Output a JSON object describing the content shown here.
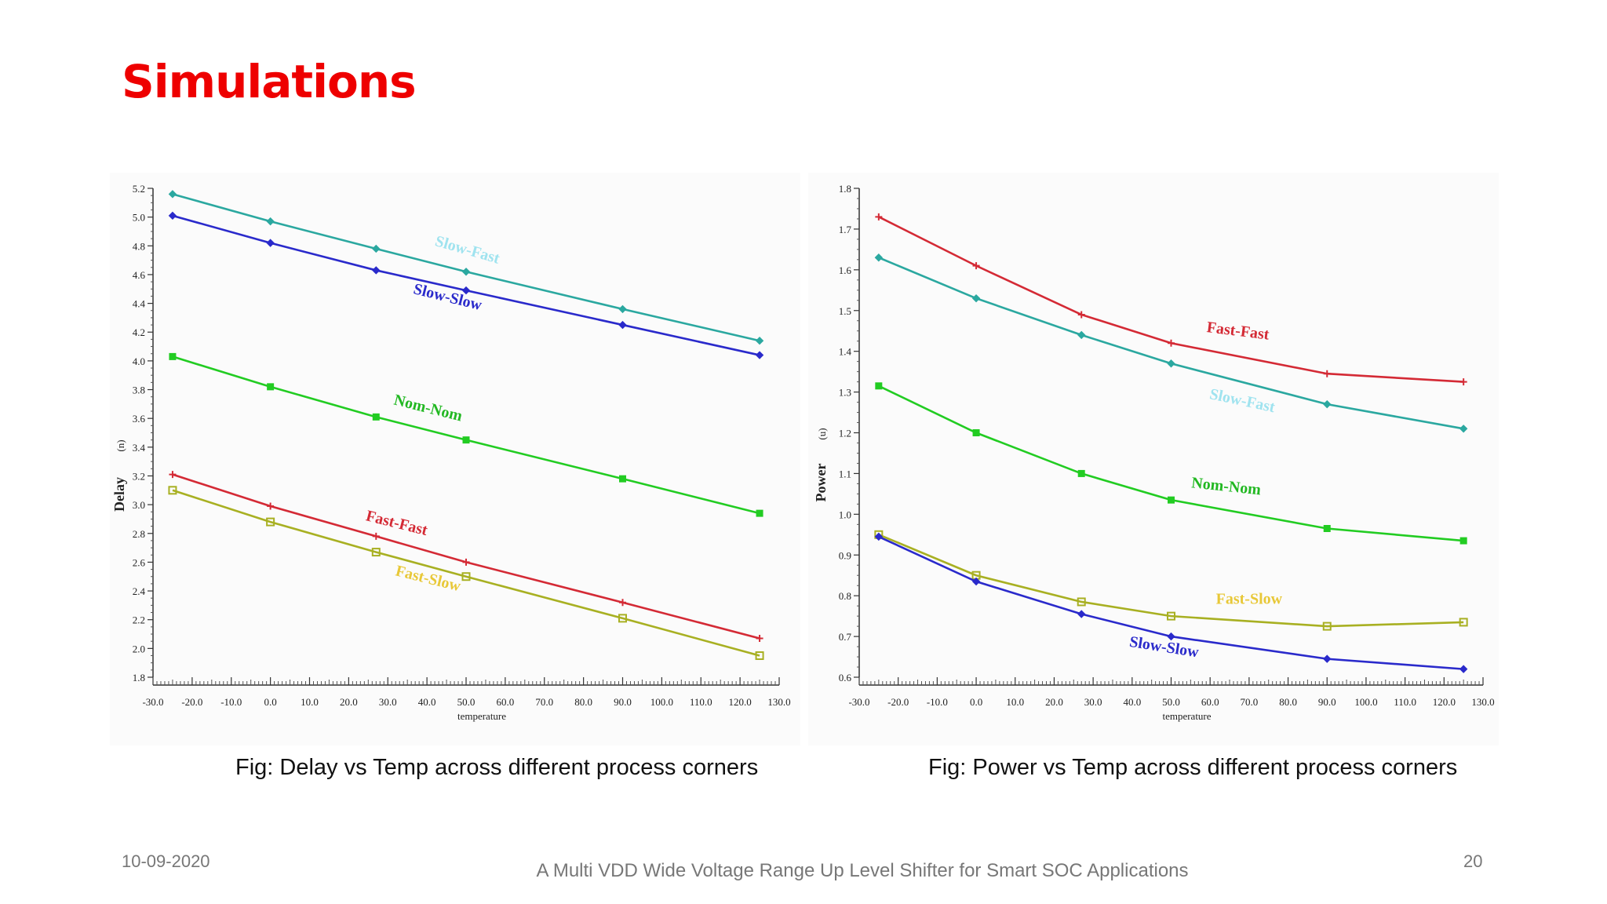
{
  "slide": {
    "title": "Simulations",
    "footer_date": "10-09-2020",
    "footer_title": "A Multi VDD Wide Voltage Range Up Level Shifter for Smart SOC Applications",
    "page_number": "20"
  },
  "captions": {
    "delay": "Fig: Delay vs Temp across different process corners",
    "power": "Fig: Power vs Temp across different process corners"
  },
  "chart_data": [
    {
      "id": "delay",
      "type": "line",
      "xlabel": "temperature",
      "ylabel": "Delay",
      "ylabel_unit": "(n)",
      "xlim": [
        -30,
        130
      ],
      "ylim": [
        1.8,
        5.2
      ],
      "xticks": [
        "-30.0",
        "-20.0",
        "-10.0",
        "0.0",
        "10.0",
        "20.0",
        "30.0",
        "40.0",
        "50.0",
        "60.0",
        "70.0",
        "80.0",
        "90.0",
        "100.0",
        "110.0",
        "120.0",
        "130.0"
      ],
      "yticks": [
        "1.8",
        "2.0",
        "2.2",
        "2.4",
        "2.6",
        "2.8",
        "3.0",
        "3.2",
        "3.4",
        "3.6",
        "3.8",
        "4.0",
        "4.2",
        "4.4",
        "4.6",
        "4.8",
        "5.0",
        "5.2"
      ],
      "x": [
        -25,
        0,
        27,
        50,
        90,
        125
      ],
      "series": [
        {
          "name": "Slow-Fast",
          "color": "#2ba8a0",
          "label_color": "#9fe3ef",
          "marker": "diamond",
          "values": [
            5.16,
            4.97,
            4.78,
            4.62,
            4.36,
            4.14
          ]
        },
        {
          "name": "Slow-Slow",
          "color": "#2a2acb",
          "label_color": "#2a2acb",
          "marker": "diamond",
          "values": [
            5.01,
            4.82,
            4.63,
            4.49,
            4.25,
            4.04
          ]
        },
        {
          "name": "Nom-Nom",
          "color": "#22cc22",
          "label_color": "#22b822",
          "marker": "square",
          "values": [
            4.03,
            3.82,
            3.61,
            3.45,
            3.18,
            2.94
          ]
        },
        {
          "name": "Fast-Fast",
          "color": "#d42a35",
          "label_color": "#d42a35",
          "marker": "plus",
          "values": [
            3.21,
            2.99,
            2.78,
            2.6,
            2.32,
            2.07
          ]
        },
        {
          "name": "Fast-Slow",
          "color": "#a8b022",
          "label_color": "#e8c838",
          "marker": "open-square",
          "values": [
            3.1,
            2.88,
            2.67,
            2.5,
            2.21,
            1.95
          ]
        }
      ]
    },
    {
      "id": "power",
      "type": "line",
      "xlabel": "temperature",
      "ylabel": "Power",
      "ylabel_unit": "(u)",
      "xlim": [
        -30,
        130
      ],
      "ylim": [
        0.6,
        1.8
      ],
      "xticks": [
        "-30.0",
        "-20.0",
        "-10.0",
        "0.0",
        "10.0",
        "20.0",
        "30.0",
        "40.0",
        "50.0",
        "60.0",
        "70.0",
        "80.0",
        "90.0",
        "100.0",
        "110.0",
        "120.0",
        "130.0"
      ],
      "yticks": [
        "0.6",
        "0.7",
        "0.8",
        "0.9",
        "1.0",
        "1.1",
        "1.2",
        "1.3",
        "1.4",
        "1.5",
        "1.6",
        "1.7",
        "1.8"
      ],
      "x": [
        -25,
        0,
        27,
        50,
        90,
        125
      ],
      "series": [
        {
          "name": "Fast-Fast",
          "color": "#d42a35",
          "label_color": "#d42a35",
          "marker": "plus",
          "values": [
            1.73,
            1.61,
            1.49,
            1.42,
            1.345,
            1.325
          ]
        },
        {
          "name": "Slow-Fast",
          "color": "#2ba8a0",
          "label_color": "#9fe3ef",
          "marker": "diamond",
          "values": [
            1.63,
            1.53,
            1.44,
            1.37,
            1.27,
            1.21
          ]
        },
        {
          "name": "Nom-Nom",
          "color": "#22cc22",
          "label_color": "#22b822",
          "marker": "square",
          "values": [
            1.315,
            1.2,
            1.1,
            1.035,
            0.965,
            0.935
          ]
        },
        {
          "name": "Fast-Slow",
          "color": "#a8b022",
          "label_color": "#e8c838",
          "marker": "open-square",
          "values": [
            0.95,
            0.85,
            0.785,
            0.75,
            0.725,
            0.735
          ]
        },
        {
          "name": "Slow-Slow",
          "color": "#2a2acb",
          "label_color": "#2a2acb",
          "marker": "diamond",
          "values": [
            0.945,
            0.835,
            0.755,
            0.7,
            0.645,
            0.62
          ]
        }
      ]
    }
  ]
}
